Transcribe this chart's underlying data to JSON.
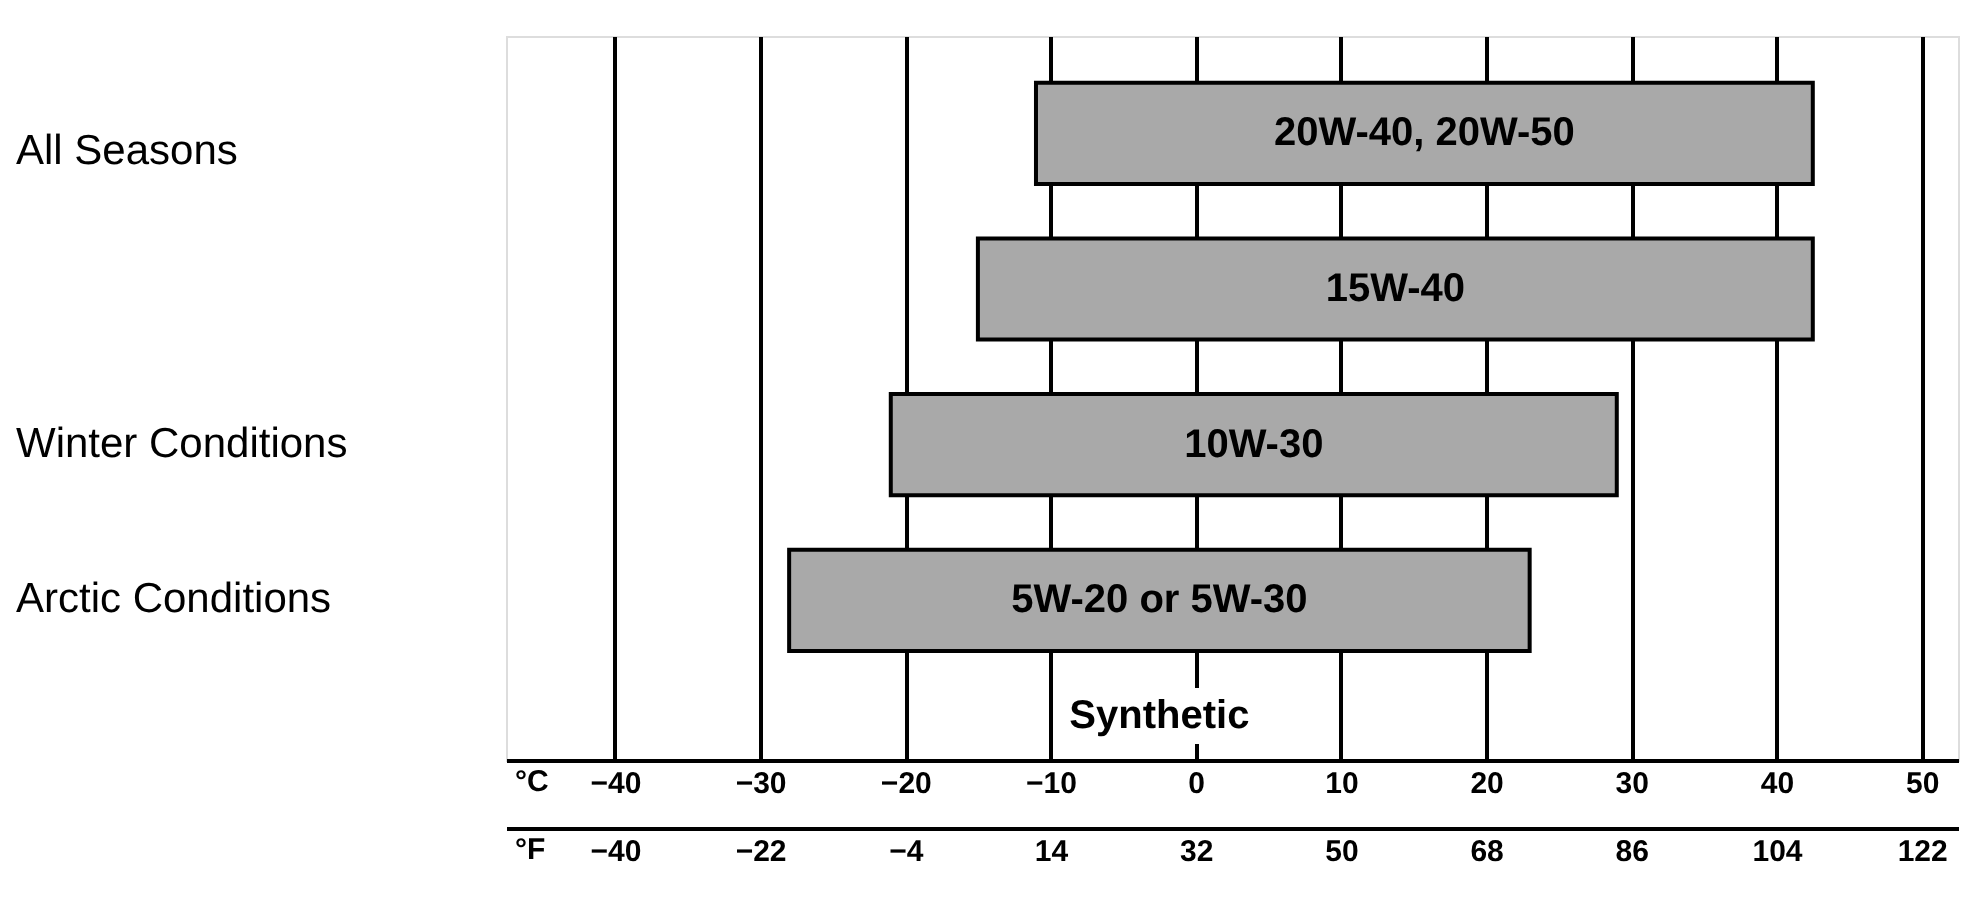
{
  "chart_data": {
    "type": "bar",
    "orientation": "horizontal",
    "categories": [
      "All Seasons",
      null,
      "Winter Conditions",
      "Arctic Conditions"
    ],
    "series": [
      {
        "name": "20W-40, 20W-50",
        "color": "#a9a9a9",
        "base": [
          -11,
          null,
          null,
          null
        ],
        "values": [
          53.5,
          null,
          null,
          null
        ]
      },
      {
        "name": "15W-40",
        "color": "#a9a9a9",
        "base": [
          null,
          -15,
          null,
          null
        ],
        "values": [
          null,
          57.5,
          null,
          null
        ]
      },
      {
        "name": "10W-30",
        "color": "#a9a9a9",
        "base": [
          null,
          null,
          -21,
          null
        ],
        "values": [
          null,
          null,
          50,
          null
        ]
      },
      {
        "name": "5W-20 or 5W-30",
        "color": "#a9a9a9",
        "base": [
          null,
          null,
          null,
          -28
        ],
        "values": [
          null,
          null,
          null,
          51
        ]
      }
    ],
    "xlim": [
      -47.5,
      52.5
    ],
    "xticks": [
      -40,
      -30,
      -20,
      -10,
      0,
      10,
      20,
      30,
      40,
      50
    ],
    "xlabel": "°C",
    "x2lim": [
      -53.5,
      126.5
    ],
    "x2ticks": [
      -40,
      -22,
      -4,
      14,
      32,
      50,
      68,
      86,
      104,
      122
    ],
    "x2label": "°F",
    "grid": "x",
    "annotations": [
      "Synthetic"
    ]
  }
}
